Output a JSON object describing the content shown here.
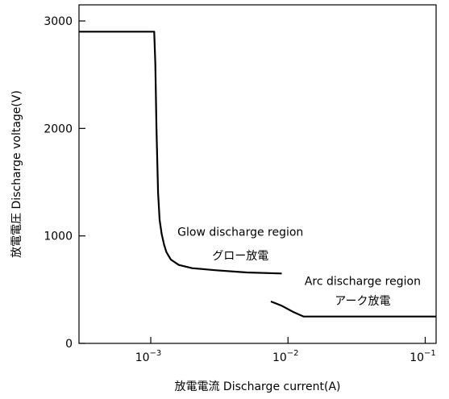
{
  "chart_data": {
    "type": "line",
    "xscale": "log",
    "xlim": [
      0.0003,
      0.12
    ],
    "ylim": [
      0,
      3150
    ],
    "xlabel": "放電電流  Discharge current(A)",
    "ylabel": "放電電圧    Discharge voltage(V)",
    "x_ticks": [
      {
        "value": 0.001,
        "base": "10",
        "exp": "−3"
      },
      {
        "value": 0.01,
        "base": "10",
        "exp": "−2"
      },
      {
        "value": 0.1,
        "base": "10",
        "exp": "−1"
      }
    ],
    "y_ticks": [
      {
        "value": 0,
        "label": "0"
      },
      {
        "value": 1000,
        "label": "1000"
      },
      {
        "value": 2000,
        "label": "2000"
      },
      {
        "value": 3000,
        "label": "3000"
      }
    ],
    "series": [
      {
        "x": [
          0.0003,
          0.00106,
          0.00108,
          0.0011,
          0.00113,
          0.00116,
          0.0012,
          0.00125,
          0.0013,
          0.0014,
          0.0016,
          0.002,
          0.003,
          0.005,
          0.009
        ],
        "y": [
          2900,
          2900,
          2600,
          2000,
          1400,
          1150,
          1020,
          920,
          850,
          780,
          730,
          700,
          680,
          660,
          650
        ]
      },
      {
        "x": [
          0.0075,
          0.009,
          0.011,
          0.013,
          0.02,
          0.05,
          0.12
        ],
        "y": [
          390,
          350,
          290,
          250,
          250,
          250,
          250
        ]
      }
    ],
    "annotations": [
      {
        "text": "Glow discharge region",
        "x": 0.0045,
        "y": 1000
      },
      {
        "text": "グロー放電",
        "x": 0.0045,
        "y": 780
      },
      {
        "text": "Arc discharge region",
        "x": 0.035,
        "y": 545
      },
      {
        "text": "アーク放電",
        "x": 0.035,
        "y": 360
      }
    ],
    "grid": false,
    "legend": "none"
  }
}
